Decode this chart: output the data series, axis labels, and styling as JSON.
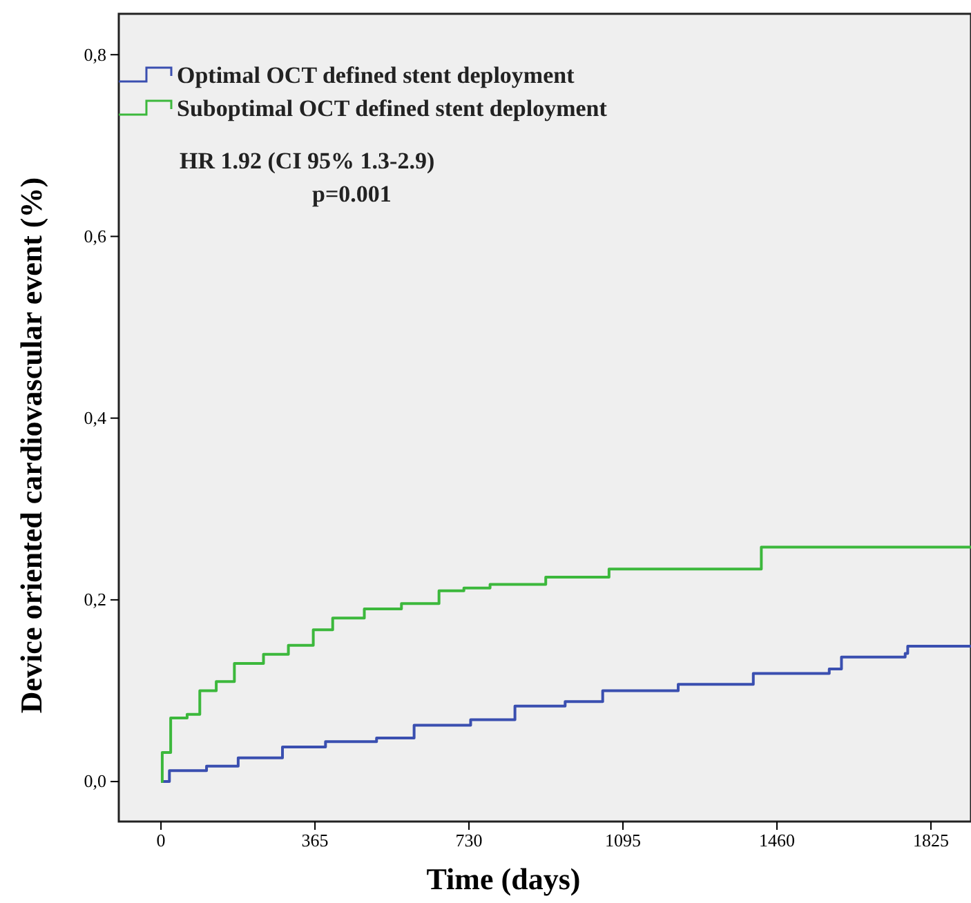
{
  "chart_data": {
    "type": "step",
    "xlabel": "Time (days)",
    "ylabel": "Device oriented cardiovascular event (%)",
    "xlim": [
      -100,
      1920
    ],
    "xticks": [
      0,
      365,
      730,
      1095,
      1460,
      1825
    ],
    "ylim": [
      -0.044,
      0.845
    ],
    "yticks": [
      {
        "value": 0,
        "label": "0,0"
      },
      {
        "value": 0.2,
        "label": "0,2"
      },
      {
        "value": 0.4,
        "label": "0,4"
      },
      {
        "value": 0.6,
        "label": "0,6"
      },
      {
        "value": 0.8,
        "label": "0,8"
      }
    ],
    "legend": "top left",
    "grid": false,
    "annotations": [
      "HR 1.92 (CI 95% 1.3-2.9)",
      "p=0.001"
    ],
    "series": [
      {
        "name": "Optimal OCT defined stent deployment",
        "color": "#3a4fb0",
        "x": [
          0,
          20,
          108,
          183,
          288,
          390,
          511,
          600,
          734,
          839,
          958,
          1047,
          1226,
          1404,
          1584,
          1613,
          1764,
          1770,
          1920
        ],
        "values": [
          0,
          0.012,
          0.017,
          0.026,
          0.038,
          0.044,
          0.048,
          0.062,
          0.068,
          0.083,
          0.088,
          0.1,
          0.107,
          0.119,
          0.124,
          0.137,
          0.141,
          0.149,
          0.149
        ]
      },
      {
        "name": "Suboptimal OCT defined stent deployment",
        "color": "#3cb83c",
        "x": [
          0,
          3,
          23,
          62,
          92,
          131,
          174,
          243,
          302,
          361,
          407,
          482,
          570,
          659,
          718,
          780,
          912,
          1062,
          1413,
          1423,
          1920
        ],
        "values": [
          0,
          0.032,
          0.07,
          0.074,
          0.1,
          0.11,
          0.13,
          0.14,
          0.15,
          0.167,
          0.18,
          0.19,
          0.196,
          0.21,
          0.213,
          0.217,
          0.225,
          0.234,
          0.234,
          0.258,
          0.258
        ]
      }
    ]
  }
}
